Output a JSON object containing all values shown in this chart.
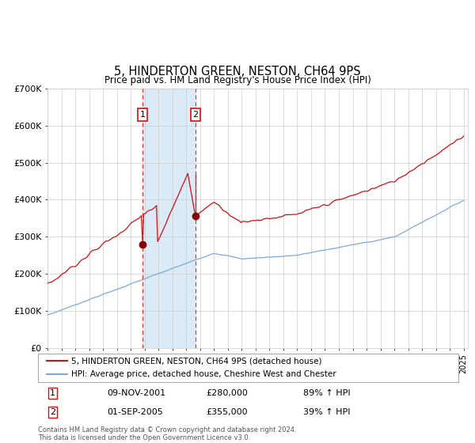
{
  "title": "5, HINDERTON GREEN, NESTON, CH64 9PS",
  "subtitle": "Price paid vs. HM Land Registry's House Price Index (HPI)",
  "ylim": [
    0,
    700000
  ],
  "yticks": [
    0,
    100000,
    200000,
    300000,
    400000,
    500000,
    600000,
    700000
  ],
  "ytick_labels": [
    "£0",
    "£100K",
    "£200K",
    "£300K",
    "£400K",
    "£500K",
    "£600K",
    "£700K"
  ],
  "year_start": 1995,
  "year_end": 2025,
  "sale1_date": 2001.86,
  "sale1_price": 280000,
  "sale2_date": 2005.67,
  "sale2_price": 355000,
  "sale2_peak": 470000,
  "shade_color": "#daeaf7",
  "vline_color": "#ee3333",
  "hpi_color": "#7aaadd",
  "price_color": "#cc1111",
  "marker_color": "#880000",
  "grid_color": "#cccccc",
  "legend1_label": "5, HINDERTON GREEN, NESTON, CH64 9PS (detached house)",
  "legend2_label": "HPI: Average price, detached house, Cheshire West and Chester",
  "transaction1_date_str": "09-NOV-2001",
  "transaction1_price_str": "£280,000",
  "transaction1_hpi_str": "89% ↑ HPI",
  "transaction2_date_str": "01-SEP-2005",
  "transaction2_price_str": "£355,000",
  "transaction2_hpi_str": "39% ↑ HPI",
  "footnote": "Contains HM Land Registry data © Crown copyright and database right 2024.\nThis data is licensed under the Open Government Licence v3.0.",
  "background_color": "#ffffff"
}
